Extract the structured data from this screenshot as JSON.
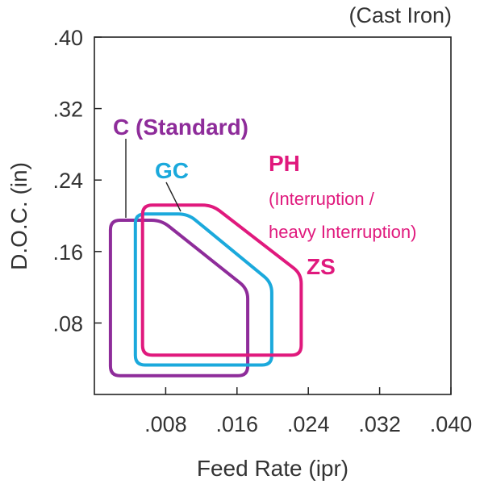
{
  "chart_data": {
    "type": "area",
    "title": "(Cast Iron)",
    "xlabel": "Feed Rate (ipr)",
    "ylabel": "D.O.C. (in)",
    "xlim": [
      0,
      0.04
    ],
    "ylim": [
      0,
      0.4
    ],
    "x_ticks": [
      {
        "value": 0.008,
        "label": ".008"
      },
      {
        "value": 0.016,
        "label": ".016"
      },
      {
        "value": 0.024,
        "label": ".024"
      },
      {
        "value": 0.032,
        "label": ".032"
      },
      {
        "value": 0.04,
        "label": ".040"
      }
    ],
    "y_ticks": [
      {
        "value": 0.08,
        "label": ".08"
      },
      {
        "value": 0.16,
        "label": ".16"
      },
      {
        "value": 0.24,
        "label": ".24"
      },
      {
        "value": 0.32,
        "label": ".32"
      },
      {
        "value": 0.4,
        "label": ".40"
      }
    ],
    "grid": false,
    "regions": [
      {
        "key": "c",
        "color": "#8e2c9a",
        "polygon": [
          [
            0.0018,
            0.195
          ],
          [
            0.0075,
            0.195
          ],
          [
            0.0172,
            0.118
          ],
          [
            0.0172,
            0.021
          ],
          [
            0.0018,
            0.021
          ]
        ],
        "labels": [
          "C (Standard)"
        ]
      },
      {
        "key": "gc",
        "color": "#1ba9dc",
        "polygon": [
          [
            0.0046,
            0.202
          ],
          [
            0.0105,
            0.202
          ],
          [
            0.0199,
            0.125
          ],
          [
            0.0199,
            0.033
          ],
          [
            0.0046,
            0.033
          ]
        ],
        "labels": [
          "GC"
        ]
      },
      {
        "key": "ph",
        "color": "#e0197d",
        "polygon": [
          [
            0.0054,
            0.212
          ],
          [
            0.0132,
            0.212
          ],
          [
            0.0232,
            0.135
          ],
          [
            0.0232,
            0.044
          ],
          [
            0.0054,
            0.044
          ]
        ],
        "labels": [
          "PH",
          "(Interruption /",
          "heavy Interruption)",
          "ZS"
        ]
      }
    ]
  }
}
